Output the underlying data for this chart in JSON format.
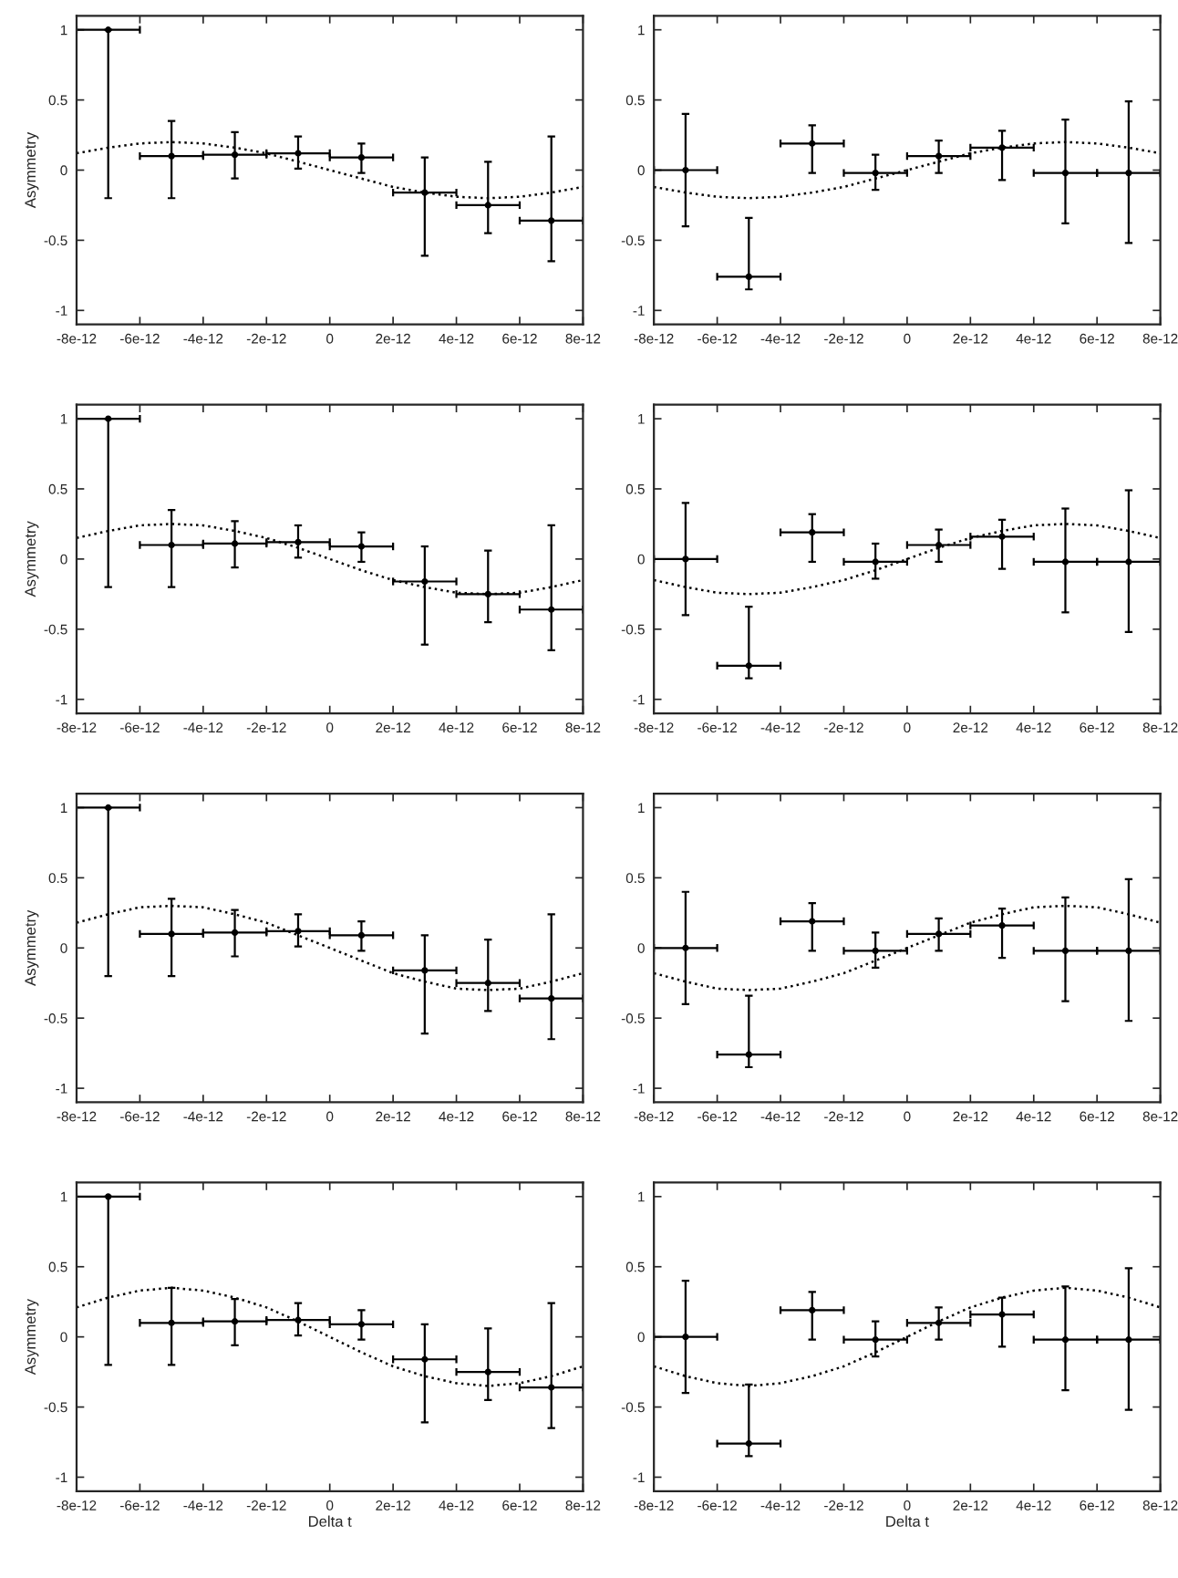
{
  "chart_data": [
    {
      "type": "scatter",
      "ylabel": "Asymmetry",
      "xlim": [
        -8e-12,
        8e-12
      ],
      "ylim": [
        -1.1,
        1.1
      ],
      "xticks": [
        {
          "value": -8e-12,
          "label": "-8e-12"
        },
        {
          "value": -6e-12,
          "label": "-6e-12"
        },
        {
          "value": -4e-12,
          "label": "-4e-12"
        },
        {
          "value": -2e-12,
          "label": "-2e-12"
        },
        0,
        {
          "value": 2e-12,
          "label": "2e-12"
        },
        {
          "value": 4e-12,
          "label": "4e-12"
        },
        {
          "value": 6e-12,
          "label": "6e-12"
        },
        {
          "value": 8e-12,
          "label": "8e-12"
        }
      ],
      "yticks": [
        -1,
        -0.5,
        0,
        0.5,
        1
      ],
      "grid": false,
      "series": [
        {
          "marker": "circle",
          "color": "#000000",
          "x": [
            -7e-12,
            -5e-12,
            -3e-12,
            -1e-12,
            1e-12,
            3e-12,
            5e-12,
            7e-12
          ],
          "values": [
            1.0,
            0.1,
            0.11,
            0.12,
            0.09,
            -0.16,
            -0.25,
            -0.36
          ],
          "errors": [
            [
              -0.2,
              1.0
            ],
            [
              -0.2,
              0.35
            ],
            [
              -0.06,
              0.27
            ],
            [
              0.01,
              0.24
            ],
            [
              -0.02,
              0.19
            ],
            [
              -0.61,
              0.09
            ],
            [
              -0.45,
              0.06
            ],
            [
              -0.65,
              0.24
            ]
          ],
          "xerrors": [
            1e-12,
            1e-12,
            1e-12,
            1e-12,
            1e-12,
            1e-12,
            1e-12,
            1e-12
          ]
        },
        {
          "type": "line",
          "line_style": "dotted",
          "color": "#000000",
          "x": [
            -8e-12,
            -7e-12,
            -6e-12,
            -5e-12,
            -4e-12,
            -3e-12,
            -2e-12,
            -1e-12,
            0,
            1e-12,
            2e-12,
            3e-12,
            4e-12,
            5e-12,
            6e-12,
            7e-12,
            8e-12
          ],
          "values": [
            0.12,
            0.16,
            0.19,
            0.2,
            0.19,
            0.16,
            0.12,
            0.06,
            0,
            -0.06,
            -0.12,
            -0.16,
            -0.19,
            -0.2,
            -0.19,
            -0.16,
            -0.12
          ]
        }
      ]
    },
    {
      "type": "scatter",
      "xlim": [
        -8e-12,
        8e-12
      ],
      "ylim": [
        -1.1,
        1.1
      ],
      "xticks": [
        {
          "value": -8e-12,
          "label": "-8e-12"
        },
        {
          "value": -6e-12,
          "label": "-6e-12"
        },
        {
          "value": -4e-12,
          "label": "-4e-12"
        },
        {
          "value": -2e-12,
          "label": "-2e-12"
        },
        0,
        {
          "value": 2e-12,
          "label": "2e-12"
        },
        {
          "value": 4e-12,
          "label": "4e-12"
        },
        {
          "value": 6e-12,
          "label": "6e-12"
        },
        {
          "value": 8e-12,
          "label": "8e-12"
        }
      ],
      "yticks": [
        -1,
        -0.5,
        0,
        0.5,
        1
      ],
      "grid": false,
      "series": [
        {
          "marker": "circle",
          "color": "#000000",
          "x": [
            -7e-12,
            -5e-12,
            -3e-12,
            -1e-12,
            1e-12,
            3e-12,
            5e-12,
            7e-12
          ],
          "values": [
            0.0,
            -0.76,
            0.19,
            -0.02,
            0.1,
            0.16,
            -0.02,
            -0.02
          ],
          "errors": [
            [
              -0.4,
              0.4
            ],
            [
              -0.85,
              -0.34
            ],
            [
              -0.02,
              0.32
            ],
            [
              -0.14,
              0.11
            ],
            [
              -0.02,
              0.21
            ],
            [
              -0.07,
              0.28
            ],
            [
              -0.38,
              0.36
            ],
            [
              -0.52,
              0.49
            ]
          ],
          "xerrors": [
            1e-12,
            1e-12,
            1e-12,
            1e-12,
            1e-12,
            1e-12,
            1e-12,
            1e-12
          ]
        },
        {
          "type": "line",
          "line_style": "dotted",
          "color": "#000000",
          "x": [
            -8e-12,
            -7e-12,
            -6e-12,
            -5e-12,
            -4e-12,
            -3e-12,
            -2e-12,
            -1e-12,
            0,
            1e-12,
            2e-12,
            3e-12,
            4e-12,
            5e-12,
            6e-12,
            7e-12,
            8e-12
          ],
          "values": [
            -0.12,
            -0.16,
            -0.19,
            -0.2,
            -0.19,
            -0.16,
            -0.12,
            -0.06,
            0,
            0.06,
            0.12,
            0.16,
            0.19,
            0.2,
            0.19,
            0.16,
            0.12
          ]
        }
      ]
    },
    {
      "type": "scatter",
      "ylabel": "Asymmetry",
      "xlim": [
        -8e-12,
        8e-12
      ],
      "ylim": [
        -1.1,
        1.1
      ],
      "xticks": [
        {
          "value": -8e-12,
          "label": "-8e-12"
        },
        {
          "value": -6e-12,
          "label": "-6e-12"
        },
        {
          "value": -4e-12,
          "label": "-4e-12"
        },
        {
          "value": -2e-12,
          "label": "-2e-12"
        },
        0,
        {
          "value": 2e-12,
          "label": "2e-12"
        },
        {
          "value": 4e-12,
          "label": "4e-12"
        },
        {
          "value": 6e-12,
          "label": "6e-12"
        },
        {
          "value": 8e-12,
          "label": "8e-12"
        }
      ],
      "yticks": [
        -1,
        -0.5,
        0,
        0.5,
        1
      ],
      "grid": false,
      "series": [
        {
          "marker": "circle",
          "color": "#000000",
          "x": [
            -7e-12,
            -5e-12,
            -3e-12,
            -1e-12,
            1e-12,
            3e-12,
            5e-12,
            7e-12
          ],
          "values": [
            1.0,
            0.1,
            0.11,
            0.12,
            0.09,
            -0.16,
            -0.25,
            -0.36
          ],
          "errors": [
            [
              -0.2,
              1.0
            ],
            [
              -0.2,
              0.35
            ],
            [
              -0.06,
              0.27
            ],
            [
              0.01,
              0.24
            ],
            [
              -0.02,
              0.19
            ],
            [
              -0.61,
              0.09
            ],
            [
              -0.45,
              0.06
            ],
            [
              -0.65,
              0.24
            ]
          ],
          "xerrors": [
            1e-12,
            1e-12,
            1e-12,
            1e-12,
            1e-12,
            1e-12,
            1e-12,
            1e-12
          ]
        },
        {
          "type": "line",
          "line_style": "dotted",
          "color": "#000000",
          "x": [
            -8e-12,
            -7e-12,
            -6e-12,
            -5e-12,
            -4e-12,
            -3e-12,
            -2e-12,
            -1e-12,
            0,
            1e-12,
            2e-12,
            3e-12,
            4e-12,
            5e-12,
            6e-12,
            7e-12,
            8e-12
          ],
          "values": [
            0.15,
            0.2,
            0.24,
            0.25,
            0.24,
            0.2,
            0.15,
            0.08,
            0,
            -0.08,
            -0.15,
            -0.2,
            -0.24,
            -0.25,
            -0.24,
            -0.2,
            -0.15
          ]
        }
      ]
    },
    {
      "type": "scatter",
      "xlim": [
        -8e-12,
        8e-12
      ],
      "ylim": [
        -1.1,
        1.1
      ],
      "xticks": [
        {
          "value": -8e-12,
          "label": "-8e-12"
        },
        {
          "value": -6e-12,
          "label": "-6e-12"
        },
        {
          "value": -4e-12,
          "label": "-4e-12"
        },
        {
          "value": -2e-12,
          "label": "-2e-12"
        },
        0,
        {
          "value": 2e-12,
          "label": "2e-12"
        },
        {
          "value": 4e-12,
          "label": "4e-12"
        },
        {
          "value": 6e-12,
          "label": "6e-12"
        },
        {
          "value": 8e-12,
          "label": "8e-12"
        }
      ],
      "yticks": [
        -1,
        -0.5,
        0,
        0.5,
        1
      ],
      "grid": false,
      "series": [
        {
          "marker": "circle",
          "color": "#000000",
          "x": [
            -7e-12,
            -5e-12,
            -3e-12,
            -1e-12,
            1e-12,
            3e-12,
            5e-12,
            7e-12
          ],
          "values": [
            0.0,
            -0.76,
            0.19,
            -0.02,
            0.1,
            0.16,
            -0.02,
            -0.02
          ],
          "errors": [
            [
              -0.4,
              0.4
            ],
            [
              -0.85,
              -0.34
            ],
            [
              -0.02,
              0.32
            ],
            [
              -0.14,
              0.11
            ],
            [
              -0.02,
              0.21
            ],
            [
              -0.07,
              0.28
            ],
            [
              -0.38,
              0.36
            ],
            [
              -0.52,
              0.49
            ]
          ],
          "xerrors": [
            1e-12,
            1e-12,
            1e-12,
            1e-12,
            1e-12,
            1e-12,
            1e-12,
            1e-12
          ]
        },
        {
          "type": "line",
          "line_style": "dotted",
          "color": "#000000",
          "x": [
            -8e-12,
            -7e-12,
            -6e-12,
            -5e-12,
            -4e-12,
            -3e-12,
            -2e-12,
            -1e-12,
            0,
            1e-12,
            2e-12,
            3e-12,
            4e-12,
            5e-12,
            6e-12,
            7e-12,
            8e-12
          ],
          "values": [
            -0.15,
            -0.2,
            -0.24,
            -0.25,
            -0.24,
            -0.2,
            -0.15,
            -0.08,
            0,
            0.08,
            0.15,
            0.2,
            0.24,
            0.25,
            0.24,
            0.2,
            0.15
          ]
        }
      ]
    },
    {
      "type": "scatter",
      "ylabel": "Asymmetry",
      "xlim": [
        -8e-12,
        8e-12
      ],
      "ylim": [
        -1.1,
        1.1
      ],
      "xticks": [
        {
          "value": -8e-12,
          "label": "-8e-12"
        },
        {
          "value": -6e-12,
          "label": "-6e-12"
        },
        {
          "value": -4e-12,
          "label": "-4e-12"
        },
        {
          "value": -2e-12,
          "label": "-2e-12"
        },
        0,
        {
          "value": 2e-12,
          "label": "2e-12"
        },
        {
          "value": 4e-12,
          "label": "4e-12"
        },
        {
          "value": 6e-12,
          "label": "6e-12"
        },
        {
          "value": 8e-12,
          "label": "8e-12"
        }
      ],
      "yticks": [
        -1,
        -0.5,
        0,
        0.5,
        1
      ],
      "grid": false,
      "series": [
        {
          "marker": "circle",
          "color": "#000000",
          "x": [
            -7e-12,
            -5e-12,
            -3e-12,
            -1e-12,
            1e-12,
            3e-12,
            5e-12,
            7e-12
          ],
          "values": [
            1.0,
            0.1,
            0.11,
            0.12,
            0.09,
            -0.16,
            -0.25,
            -0.36
          ],
          "errors": [
            [
              -0.2,
              1.0
            ],
            [
              -0.2,
              0.35
            ],
            [
              -0.06,
              0.27
            ],
            [
              0.01,
              0.24
            ],
            [
              -0.02,
              0.19
            ],
            [
              -0.61,
              0.09
            ],
            [
              -0.45,
              0.06
            ],
            [
              -0.65,
              0.24
            ]
          ],
          "xerrors": [
            1e-12,
            1e-12,
            1e-12,
            1e-12,
            1e-12,
            1e-12,
            1e-12,
            1e-12
          ]
        },
        {
          "type": "line",
          "line_style": "dotted",
          "color": "#000000",
          "x": [
            -8e-12,
            -7e-12,
            -6e-12,
            -5e-12,
            -4e-12,
            -3e-12,
            -2e-12,
            -1e-12,
            0,
            1e-12,
            2e-12,
            3e-12,
            4e-12,
            5e-12,
            6e-12,
            7e-12,
            8e-12
          ],
          "values": [
            0.18,
            0.24,
            0.29,
            0.3,
            0.29,
            0.24,
            0.18,
            0.09,
            0,
            -0.09,
            -0.18,
            -0.24,
            -0.29,
            -0.3,
            -0.29,
            -0.24,
            -0.18
          ]
        }
      ]
    },
    {
      "type": "scatter",
      "xlim": [
        -8e-12,
        8e-12
      ],
      "ylim": [
        -1.1,
        1.1
      ],
      "xticks": [
        {
          "value": -8e-12,
          "label": "-8e-12"
        },
        {
          "value": -6e-12,
          "label": "-6e-12"
        },
        {
          "value": -4e-12,
          "label": "-4e-12"
        },
        {
          "value": -2e-12,
          "label": "-2e-12"
        },
        0,
        {
          "value": 2e-12,
          "label": "2e-12"
        },
        {
          "value": 4e-12,
          "label": "4e-12"
        },
        {
          "value": 6e-12,
          "label": "6e-12"
        },
        {
          "value": 8e-12,
          "label": "8e-12"
        }
      ],
      "yticks": [
        -1,
        -0.5,
        0,
        0.5,
        1
      ],
      "grid": false,
      "series": [
        {
          "marker": "circle",
          "color": "#000000",
          "x": [
            -7e-12,
            -5e-12,
            -3e-12,
            -1e-12,
            1e-12,
            3e-12,
            5e-12,
            7e-12
          ],
          "values": [
            0.0,
            -0.76,
            0.19,
            -0.02,
            0.1,
            0.16,
            -0.02,
            -0.02
          ],
          "errors": [
            [
              -0.4,
              0.4
            ],
            [
              -0.85,
              -0.34
            ],
            [
              -0.02,
              0.32
            ],
            [
              -0.14,
              0.11
            ],
            [
              -0.02,
              0.21
            ],
            [
              -0.07,
              0.28
            ],
            [
              -0.38,
              0.36
            ],
            [
              -0.52,
              0.49
            ]
          ],
          "xerrors": [
            1e-12,
            1e-12,
            1e-12,
            1e-12,
            1e-12,
            1e-12,
            1e-12,
            1e-12
          ]
        },
        {
          "type": "line",
          "line_style": "dotted",
          "color": "#000000",
          "x": [
            -8e-12,
            -7e-12,
            -6e-12,
            -5e-12,
            -4e-12,
            -3e-12,
            -2e-12,
            -1e-12,
            0,
            1e-12,
            2e-12,
            3e-12,
            4e-12,
            5e-12,
            6e-12,
            7e-12,
            8e-12
          ],
          "values": [
            -0.18,
            -0.24,
            -0.29,
            -0.3,
            -0.29,
            -0.24,
            -0.18,
            -0.09,
            0,
            0.09,
            0.18,
            0.24,
            0.29,
            0.3,
            0.29,
            0.24,
            0.18
          ]
        }
      ]
    },
    {
      "type": "scatter",
      "ylabel": "Asymmetry",
      "xlabel": "Delta t",
      "xlim": [
        -8e-12,
        8e-12
      ],
      "ylim": [
        -1.1,
        1.1
      ],
      "xticks": [
        {
          "value": -8e-12,
          "label": "-8e-12"
        },
        {
          "value": -6e-12,
          "label": "-6e-12"
        },
        {
          "value": -4e-12,
          "label": "-4e-12"
        },
        {
          "value": -2e-12,
          "label": "-2e-12"
        },
        0,
        {
          "value": 2e-12,
          "label": "2e-12"
        },
        {
          "value": 4e-12,
          "label": "4e-12"
        },
        {
          "value": 6e-12,
          "label": "6e-12"
        },
        {
          "value": 8e-12,
          "label": "8e-12"
        }
      ],
      "yticks": [
        -1,
        -0.5,
        0,
        0.5,
        1
      ],
      "grid": false,
      "series": [
        {
          "marker": "circle",
          "color": "#000000",
          "x": [
            -7e-12,
            -5e-12,
            -3e-12,
            -1e-12,
            1e-12,
            3e-12,
            5e-12,
            7e-12
          ],
          "values": [
            1.0,
            0.1,
            0.11,
            0.12,
            0.09,
            -0.16,
            -0.25,
            -0.36
          ],
          "errors": [
            [
              -0.2,
              1.0
            ],
            [
              -0.2,
              0.35
            ],
            [
              -0.06,
              0.27
            ],
            [
              0.01,
              0.24
            ],
            [
              -0.02,
              0.19
            ],
            [
              -0.61,
              0.09
            ],
            [
              -0.45,
              0.06
            ],
            [
              -0.65,
              0.24
            ]
          ],
          "xerrors": [
            1e-12,
            1e-12,
            1e-12,
            1e-12,
            1e-12,
            1e-12,
            1e-12,
            1e-12
          ]
        },
        {
          "type": "line",
          "line_style": "dotted",
          "color": "#000000",
          "x": [
            -8e-12,
            -7e-12,
            -6e-12,
            -5e-12,
            -4e-12,
            -3e-12,
            -2e-12,
            -1e-12,
            0,
            1e-12,
            2e-12,
            3e-12,
            4e-12,
            5e-12,
            6e-12,
            7e-12,
            8e-12
          ],
          "values": [
            0.21,
            0.28,
            0.33,
            0.35,
            0.33,
            0.28,
            0.21,
            0.11,
            0,
            -0.11,
            -0.21,
            -0.28,
            -0.33,
            -0.35,
            -0.33,
            -0.28,
            -0.21
          ]
        }
      ]
    },
    {
      "type": "scatter",
      "xlabel": "Delta t",
      "xlim": [
        -8e-12,
        8e-12
      ],
      "ylim": [
        -1.1,
        1.1
      ],
      "xticks": [
        {
          "value": -8e-12,
          "label": "-8e-12"
        },
        {
          "value": -6e-12,
          "label": "-6e-12"
        },
        {
          "value": -4e-12,
          "label": "-4e-12"
        },
        {
          "value": -2e-12,
          "label": "-2e-12"
        },
        0,
        {
          "value": 2e-12,
          "label": "2e-12"
        },
        {
          "value": 4e-12,
          "label": "4e-12"
        },
        {
          "value": 6e-12,
          "label": "6e-12"
        },
        {
          "value": 8e-12,
          "label": "8e-12"
        }
      ],
      "yticks": [
        -1,
        -0.5,
        0,
        0.5,
        1
      ],
      "grid": false,
      "series": [
        {
          "marker": "circle",
          "color": "#000000",
          "x": [
            -7e-12,
            -5e-12,
            -3e-12,
            -1e-12,
            1e-12,
            3e-12,
            5e-12,
            7e-12
          ],
          "values": [
            0.0,
            -0.76,
            0.19,
            -0.02,
            0.1,
            0.16,
            -0.02,
            -0.02
          ],
          "errors": [
            [
              -0.4,
              0.4
            ],
            [
              -0.85,
              -0.34
            ],
            [
              -0.02,
              0.32
            ],
            [
              -0.14,
              0.11
            ],
            [
              -0.02,
              0.21
            ],
            [
              -0.07,
              0.28
            ],
            [
              -0.38,
              0.36
            ],
            [
              -0.52,
              0.49
            ]
          ],
          "xerrors": [
            1e-12,
            1e-12,
            1e-12,
            1e-12,
            1e-12,
            1e-12,
            1e-12,
            1e-12
          ]
        },
        {
          "type": "line",
          "line_style": "dotted",
          "color": "#000000",
          "x": [
            -8e-12,
            -7e-12,
            -6e-12,
            -5e-12,
            -4e-12,
            -3e-12,
            -2e-12,
            -1e-12,
            0,
            1e-12,
            2e-12,
            3e-12,
            4e-12,
            5e-12,
            6e-12,
            7e-12,
            8e-12
          ],
          "values": [
            -0.21,
            -0.28,
            -0.33,
            -0.35,
            -0.33,
            -0.28,
            -0.21,
            -0.11,
            0,
            0.11,
            0.21,
            0.28,
            0.33,
            0.35,
            0.33,
            0.28,
            0.21
          ]
        }
      ]
    }
  ]
}
